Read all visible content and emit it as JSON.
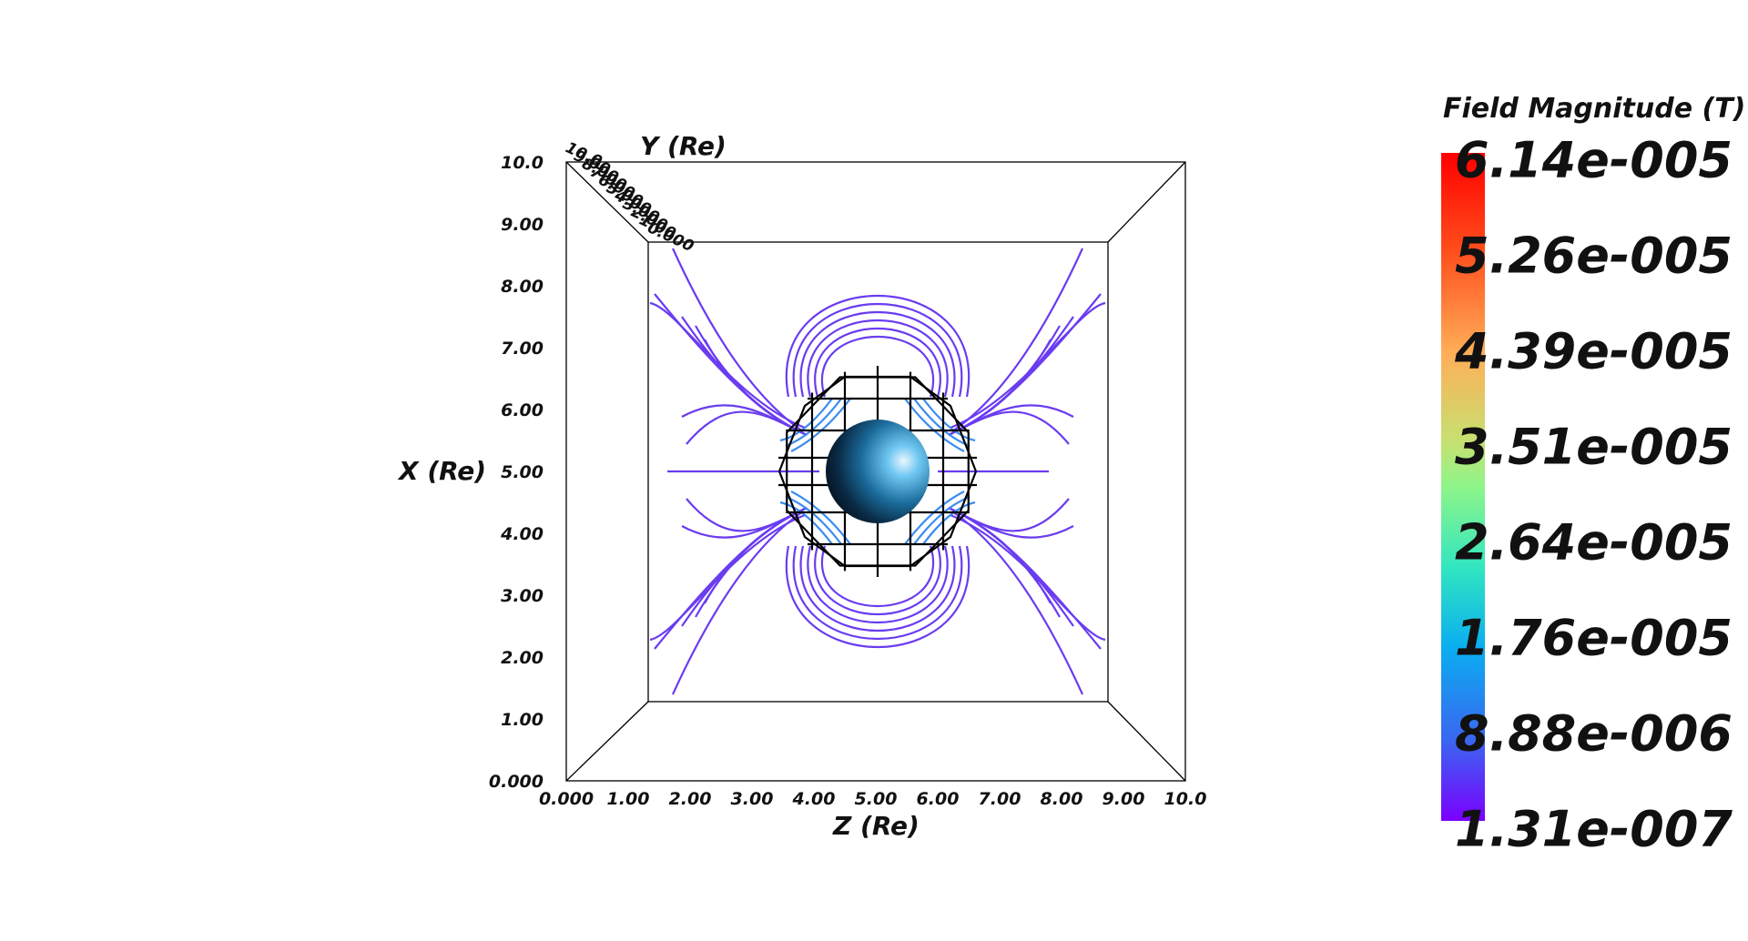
{
  "axes": {
    "x_title": "X (Re)",
    "z_title": "Z (Re)",
    "y_title": "Y (Re)",
    "x_ticks": [
      "0.000",
      "1.00",
      "2.00",
      "3.00",
      "4.00",
      "5.00",
      "6.00",
      "7.00",
      "8.00",
      "9.00",
      "10.0"
    ],
    "z_ticks": [
      "0.000",
      "1.00",
      "2.00",
      "3.00",
      "4.00",
      "5.00",
      "6.00",
      "7.00",
      "8.00",
      "9.00",
      "10.0"
    ],
    "y_ticks": [
      "10.0",
      "9.00",
      "8.00",
      "7.00",
      "6.00",
      "5.00",
      "4.00",
      "3.00",
      "2.00",
      "1.00",
      "0.000"
    ]
  },
  "legend": {
    "title": "Field Magnitude (T)",
    "labels": [
      "6.14e-005",
      "5.26e-005",
      "4.39e-005",
      "3.51e-005",
      "2.64e-005",
      "1.76e-005",
      "8.88e-006",
      "1.31e-007"
    ],
    "colors": [
      "#ff0000",
      "#ff6a2a",
      "#ffb45a",
      "#8ef58a",
      "#32e6c0",
      "#0aaef0",
      "#3a66f0",
      "#7a00ff"
    ]
  },
  "colors": {
    "line_color": "#6a3cf0",
    "inner_line_color": "#3a8cf0",
    "cage_color": "#000000",
    "box_color": "#000000"
  }
}
